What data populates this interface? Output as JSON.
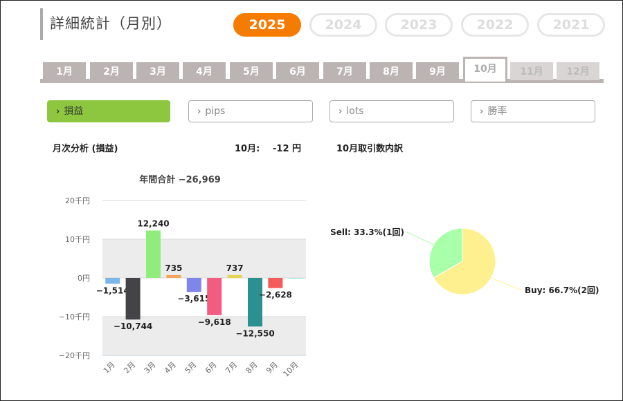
{
  "page": {
    "title": "詳細統計（月別）"
  },
  "years": [
    {
      "label": "2025",
      "active": true
    },
    {
      "label": "2024",
      "active": false
    },
    {
      "label": "2023",
      "active": false
    },
    {
      "label": "2022",
      "active": false
    },
    {
      "label": "2021",
      "active": false
    }
  ],
  "months": [
    {
      "label": "1月",
      "state": "normal"
    },
    {
      "label": "2月",
      "state": "normal"
    },
    {
      "label": "3月",
      "state": "normal"
    },
    {
      "label": "4月",
      "state": "normal"
    },
    {
      "label": "5月",
      "state": "normal"
    },
    {
      "label": "6月",
      "state": "normal"
    },
    {
      "label": "7月",
      "state": "normal"
    },
    {
      "label": "8月",
      "state": "normal"
    },
    {
      "label": "9月",
      "state": "normal"
    },
    {
      "label": "10月",
      "state": "active"
    },
    {
      "label": "11月",
      "state": "disabled"
    },
    {
      "label": "12月",
      "state": "disabled"
    }
  ],
  "metrics": [
    {
      "label": "損益",
      "active": true
    },
    {
      "label": "pips",
      "active": false
    },
    {
      "label": "lots",
      "active": false
    },
    {
      "label": "勝率",
      "active": false
    }
  ],
  "analysis": {
    "heading": "月次分析 (損益)",
    "month_label": "10月:",
    "month_value": "-12 円",
    "breakdown_heading": "10月取引数内訳"
  },
  "chart_data": [
    {
      "type": "bar",
      "title": "年間合計 −26,969",
      "categories": [
        "1月",
        "2月",
        "3月",
        "4月",
        "5月",
        "6月",
        "7月",
        "8月",
        "9月",
        "10月"
      ],
      "values": [
        -1514,
        -10744,
        12240,
        735,
        -3615,
        -9618,
        737,
        -12550,
        -2628,
        -12
      ],
      "data_labels": [
        "−1,514",
        "−10,744",
        "12,240",
        "735",
        "−3,615",
        "−9,618",
        "737",
        "−12,550",
        "−2,628",
        ""
      ],
      "colors": [
        "#7cb5ec",
        "#434348",
        "#90ed7d",
        "#f7a35c",
        "#8085e9",
        "#f15c80",
        "#e4d354",
        "#2b908f",
        "#f45b5b",
        "#91e8e1"
      ],
      "ylim": [
        -20000,
        20000
      ],
      "yticks": [
        20000,
        10000,
        0,
        -10000,
        -20000
      ],
      "ytick_labels": [
        "20千円",
        "10千円",
        "0円",
        "−10千円",
        "−20千円"
      ],
      "plot_bands": true
    },
    {
      "type": "pie",
      "slices": [
        {
          "name": "Sell",
          "value": 33.3,
          "count": 1,
          "label": "Sell: 33.3%(1回)",
          "color": "#aaffaa"
        },
        {
          "name": "Buy",
          "value": 66.7,
          "count": 2,
          "label": "Buy: 66.7%(2回)",
          "color": "#fff08f"
        }
      ]
    }
  ]
}
